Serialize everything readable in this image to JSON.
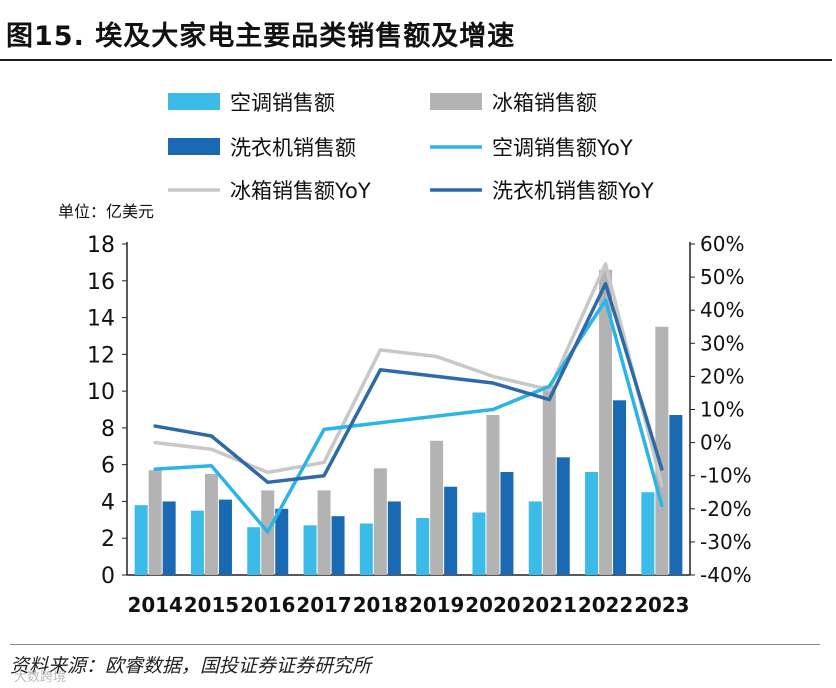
{
  "title": "图15. 埃及大家电主要品类销售额及增速",
  "source": "资料来源：欧睿数据，国投证券证券研究所",
  "watermark": "大数跨境",
  "chart_data": {
    "type": "bar",
    "unit_label": "单位：亿美元",
    "categories": [
      "2014",
      "2015",
      "2016",
      "2017",
      "2018",
      "2019",
      "2020",
      "2021",
      "2022",
      "2023"
    ],
    "y_left": {
      "min": 0,
      "max": 18,
      "ticks": [
        "0",
        "2",
        "4",
        "6",
        "8",
        "10",
        "12",
        "14",
        "16",
        "18"
      ]
    },
    "y_right": {
      "min": -40,
      "max": 60,
      "ticks": [
        "-40%",
        "-30%",
        "-20%",
        "-10%",
        "0%",
        "10%",
        "20%",
        "30%",
        "40%",
        "50%",
        "60%"
      ]
    },
    "bar_series": [
      {
        "name": "空调销售额",
        "color": "#3bbbe8",
        "values": [
          3.8,
          3.5,
          2.6,
          2.7,
          2.8,
          3.1,
          3.4,
          4.0,
          5.6,
          4.5
        ]
      },
      {
        "name": "冰箱销售额",
        "color": "#b3b3b3",
        "values": [
          5.7,
          5.5,
          4.6,
          4.6,
          5.8,
          7.3,
          8.7,
          10.3,
          16.6,
          13.5
        ]
      },
      {
        "name": "洗衣机销售额",
        "color": "#1a6ab3",
        "values": [
          4.0,
          4.1,
          3.6,
          3.2,
          4.0,
          4.8,
          5.6,
          6.4,
          9.5,
          8.7
        ]
      }
    ],
    "line_series": [
      {
        "name": "空调销售额YoY",
        "color": "#2bb5e6",
        "values": [
          -8,
          -7,
          -27,
          4,
          6,
          8,
          10,
          17,
          43,
          -19
        ]
      },
      {
        "name": "冰箱销售额YoY",
        "color": "#c8c8c8",
        "values": [
          0,
          -2,
          -9,
          -6,
          28,
          26,
          20,
          16,
          54,
          -13
        ]
      },
      {
        "name": "洗衣机销售额YoY",
        "color": "#2e6aa8",
        "values": [
          5,
          2,
          -12,
          -10,
          22,
          20,
          18,
          13,
          48,
          -8
        ]
      }
    ],
    "legend": [
      "空调销售额",
      "冰箱销售额",
      "洗衣机销售额",
      "空调销售额YoY",
      "冰箱销售额YoY",
      "洗衣机销售额YoY"
    ],
    "legend_position": "top"
  }
}
